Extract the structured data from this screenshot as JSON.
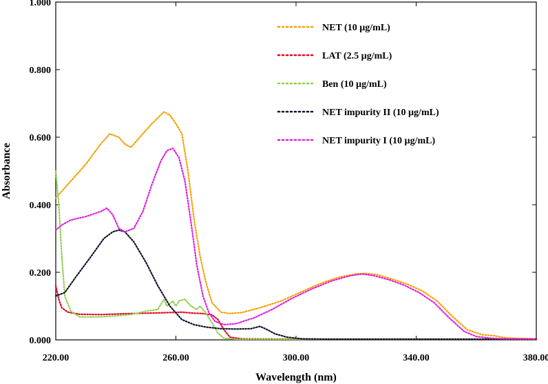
{
  "chart_data": {
    "type": "line",
    "title": "",
    "xlabel": "Wavelength (nm)",
    "ylabel": "Absorbance",
    "xlim": [
      220,
      380
    ],
    "ylim": [
      0,
      1.0
    ],
    "x_ticks": [
      220,
      260,
      300,
      340,
      380
    ],
    "x_tick_labels": [
      "220.00",
      "260.00",
      "300.00",
      "340.00",
      "380.00"
    ],
    "y_ticks": [
      0,
      0.2,
      0.4,
      0.6,
      0.8,
      1.0
    ],
    "y_tick_labels": [
      "0.000",
      "0.200",
      "0.400",
      "0.600",
      "0.800",
      "1.000"
    ],
    "legend_position": "top-right",
    "series": [
      {
        "name": "NET (10 µg/mL)",
        "color": "#f5a100",
        "points": [
          [
            220,
            0.42
          ],
          [
            225,
            0.47
          ],
          [
            230,
            0.52
          ],
          [
            235,
            0.58
          ],
          [
            238,
            0.61
          ],
          [
            241,
            0.6
          ],
          [
            243,
            0.58
          ],
          [
            245,
            0.57
          ],
          [
            248,
            0.6
          ],
          [
            252,
            0.64
          ],
          [
            256,
            0.675
          ],
          [
            258,
            0.665
          ],
          [
            260,
            0.64
          ],
          [
            262,
            0.61
          ],
          [
            264,
            0.5
          ],
          [
            266,
            0.36
          ],
          [
            268,
            0.25
          ],
          [
            270,
            0.17
          ],
          [
            272,
            0.11
          ],
          [
            275,
            0.082
          ],
          [
            278,
            0.078
          ],
          [
            282,
            0.081
          ],
          [
            288,
            0.095
          ],
          [
            295,
            0.115
          ],
          [
            300,
            0.135
          ],
          [
            305,
            0.155
          ],
          [
            310,
            0.173
          ],
          [
            315,
            0.187
          ],
          [
            320,
            0.195
          ],
          [
            323,
            0.197
          ],
          [
            327,
            0.193
          ],
          [
            332,
            0.18
          ],
          [
            337,
            0.165
          ],
          [
            342,
            0.145
          ],
          [
            347,
            0.115
          ],
          [
            352,
            0.07
          ],
          [
            357,
            0.03
          ],
          [
            362,
            0.015
          ],
          [
            366,
            0.012
          ],
          [
            370,
            0.006
          ],
          [
            375,
            0.004
          ],
          [
            380,
            0.003
          ]
        ]
      },
      {
        "name": "LAT (2.5 µg/mL)",
        "color": "#e8001c",
        "points": [
          [
            220,
            0.16
          ],
          [
            221,
            0.12
          ],
          [
            222,
            0.095
          ],
          [
            224,
            0.082
          ],
          [
            228,
            0.076
          ],
          [
            235,
            0.075
          ],
          [
            245,
            0.078
          ],
          [
            255,
            0.08
          ],
          [
            262,
            0.082
          ],
          [
            266,
            0.079
          ],
          [
            269,
            0.078
          ],
          [
            272,
            0.074
          ],
          [
            274,
            0.06
          ],
          [
            276,
            0.03
          ],
          [
            278,
            0.008
          ],
          [
            282,
            0.003
          ],
          [
            300,
            0.002
          ],
          [
            340,
            0.002
          ],
          [
            380,
            0.002
          ]
        ]
      },
      {
        "name": "Ben (10 µg/mL)",
        "color": "#8fd14f",
        "points": [
          [
            220,
            0.5
          ],
          [
            221,
            0.4
          ],
          [
            222,
            0.25
          ],
          [
            223,
            0.13
          ],
          [
            225,
            0.085
          ],
          [
            228,
            0.068
          ],
          [
            235,
            0.068
          ],
          [
            245,
            0.075
          ],
          [
            250,
            0.085
          ],
          [
            254,
            0.09
          ],
          [
            256,
            0.12
          ],
          [
            257,
            0.1
          ],
          [
            259,
            0.115
          ],
          [
            260,
            0.1
          ],
          [
            261,
            0.115
          ],
          [
            263,
            0.12
          ],
          [
            265,
            0.1
          ],
          [
            267,
            0.09
          ],
          [
            268,
            0.1
          ],
          [
            270,
            0.08
          ],
          [
            272,
            0.05
          ],
          [
            274,
            0.02
          ],
          [
            276,
            0.005
          ],
          [
            280,
            0.002
          ],
          [
            300,
            0.002
          ],
          [
            380,
            0.002
          ]
        ]
      },
      {
        "name": "NET impurity II (10 µg/mL)",
        "color": "#10132e",
        "points": [
          [
            220,
            0.13
          ],
          [
            223,
            0.14
          ],
          [
            227,
            0.19
          ],
          [
            232,
            0.25
          ],
          [
            236,
            0.3
          ],
          [
            239,
            0.32
          ],
          [
            241,
            0.325
          ],
          [
            243,
            0.32
          ],
          [
            246,
            0.29
          ],
          [
            250,
            0.23
          ],
          [
            254,
            0.16
          ],
          [
            258,
            0.1
          ],
          [
            262,
            0.06
          ],
          [
            266,
            0.045
          ],
          [
            270,
            0.038
          ],
          [
            275,
            0.033
          ],
          [
            280,
            0.032
          ],
          [
            285,
            0.033
          ],
          [
            288,
            0.04
          ],
          [
            290,
            0.032
          ],
          [
            293,
            0.018
          ],
          [
            297,
            0.008
          ],
          [
            302,
            0.003
          ],
          [
            310,
            0.002
          ],
          [
            380,
            0.002
          ]
        ]
      },
      {
        "name": "NET impurity I (10 µg/mL)",
        "color": "#e01ee0",
        "points": [
          [
            220,
            0.325
          ],
          [
            222,
            0.34
          ],
          [
            225,
            0.355
          ],
          [
            230,
            0.365
          ],
          [
            235,
            0.38
          ],
          [
            237,
            0.39
          ],
          [
            239,
            0.37
          ],
          [
            241,
            0.33
          ],
          [
            243,
            0.32
          ],
          [
            246,
            0.33
          ],
          [
            249,
            0.38
          ],
          [
            252,
            0.46
          ],
          [
            255,
            0.53
          ],
          [
            257,
            0.56
          ],
          [
            259,
            0.567
          ],
          [
            261,
            0.54
          ],
          [
            263,
            0.47
          ],
          [
            265,
            0.35
          ],
          [
            267,
            0.22
          ],
          [
            269,
            0.13
          ],
          [
            271,
            0.08
          ],
          [
            273,
            0.055
          ],
          [
            276,
            0.045
          ],
          [
            280,
            0.048
          ],
          [
            286,
            0.065
          ],
          [
            292,
            0.09
          ],
          [
            298,
            0.12
          ],
          [
            305,
            0.15
          ],
          [
            312,
            0.175
          ],
          [
            318,
            0.19
          ],
          [
            322,
            0.195
          ],
          [
            326,
            0.19
          ],
          [
            331,
            0.178
          ],
          [
            336,
            0.162
          ],
          [
            341,
            0.14
          ],
          [
            346,
            0.11
          ],
          [
            351,
            0.065
          ],
          [
            356,
            0.025
          ],
          [
            360,
            0.01
          ],
          [
            365,
            0.005
          ],
          [
            370,
            0.003
          ],
          [
            380,
            0.002
          ]
        ]
      }
    ]
  }
}
